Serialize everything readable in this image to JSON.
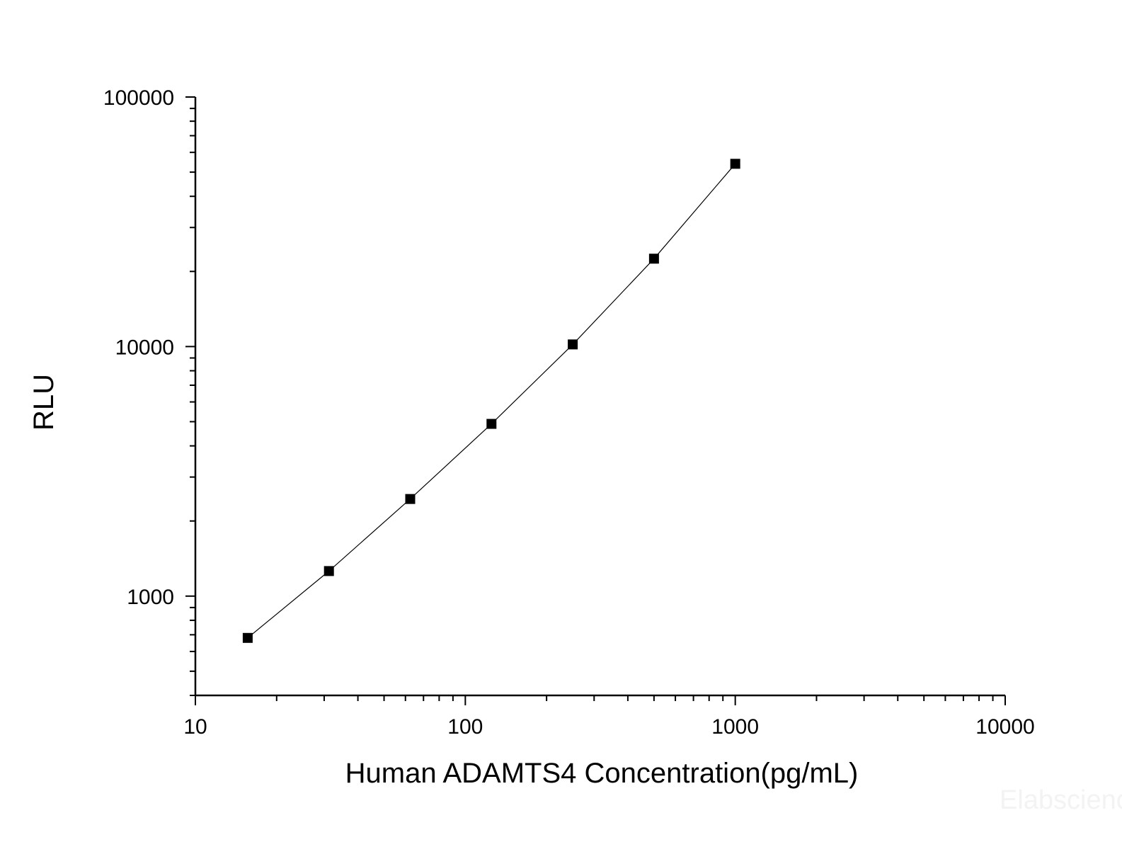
{
  "chart_data": {
    "type": "scatter",
    "x_scale": "log",
    "y_scale": "log",
    "xlim": [
      10,
      10000
    ],
    "ylim": [
      400,
      100000
    ],
    "xlabel": "Human ADAMTS4 Concentration(pg/mL)",
    "ylabel": "RLU",
    "x_ticks": [
      "10",
      "100",
      "1000",
      "10000"
    ],
    "y_ticks": [
      "1000",
      "10000",
      "100000"
    ],
    "grid": false,
    "series": [
      {
        "x": [
          15.625,
          31.25,
          62.5,
          125,
          250,
          500,
          1000
        ],
        "y": [
          680,
          1260,
          2450,
          4900,
          10200,
          22500,
          54000
        ],
        "marker": "square",
        "line": "fit",
        "color": "#000000"
      }
    ]
  },
  "watermark": "Elabscience"
}
